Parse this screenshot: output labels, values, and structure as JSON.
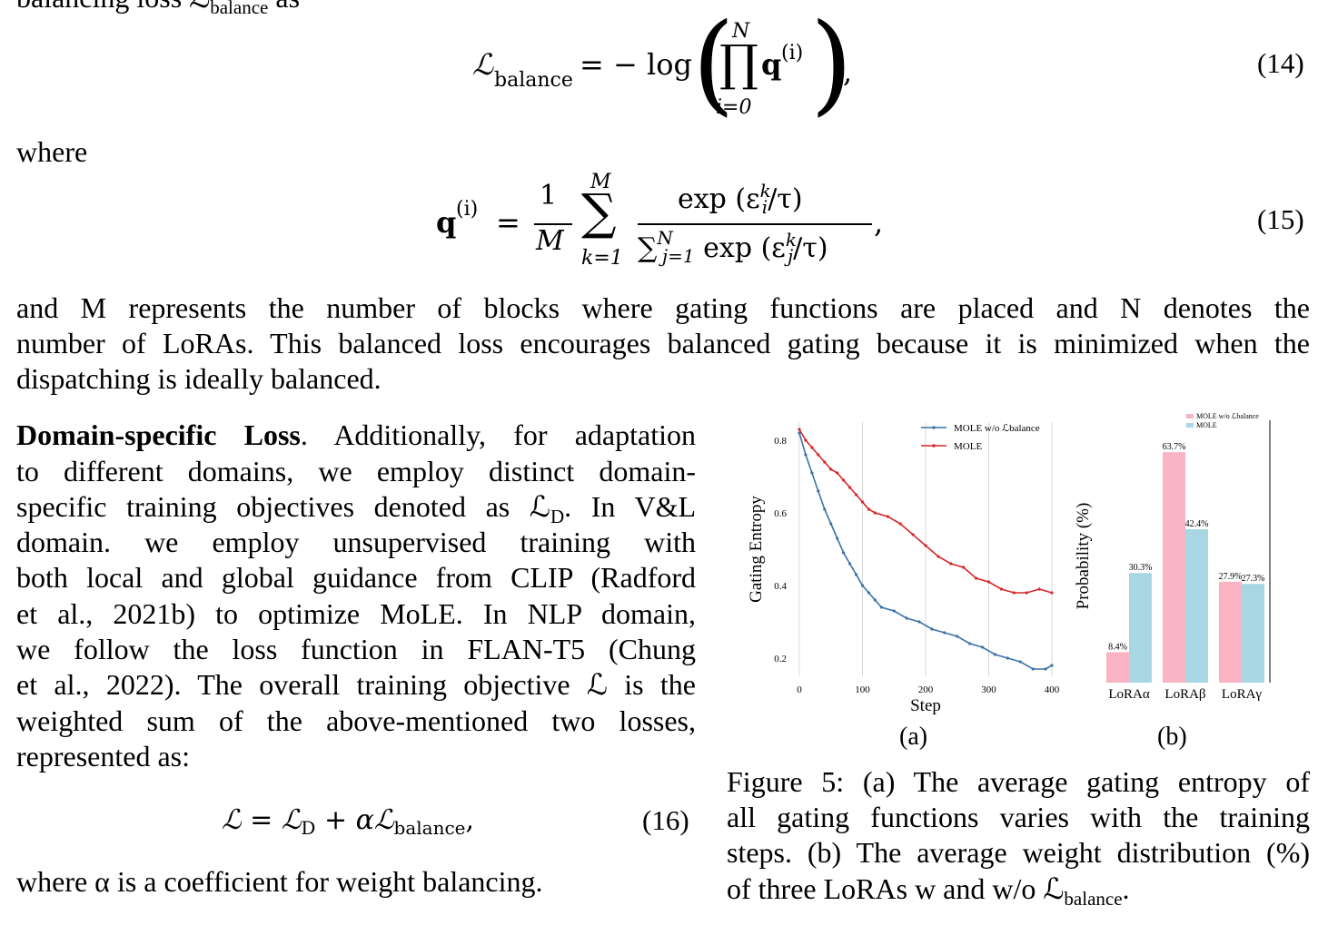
{
  "top_fragment": "balancing loss ℒ",
  "eq14": {
    "lhs": "ℒ",
    "lhs_sub": "balance",
    "rel": "= − log",
    "prod_top": "N",
    "prod_bot": "i=0",
    "q": "q",
    "q_sup": "(i)",
    "comma": ",",
    "number": "(14)"
  },
  "where1": "where",
  "eq15": {
    "lhs": "q",
    "lhs_sup": "(i)",
    "eq": "=",
    "frac_num": "1",
    "frac_den": "M",
    "sum_top": "M",
    "sum_bot": "k=1",
    "num": "exp (ε",
    "num_sup": "k",
    "num_sub": "i",
    "num_end": "/τ)",
    "den_sum": "∑",
    "den_sum_sup": "N",
    "den_sum_sub": "j=1",
    "den": "exp (ε",
    "den_sup": "k",
    "den_sub": "j",
    "den_end": "/τ)",
    "comma": ",",
    "number": "(15)"
  },
  "para1": [
    "and M represents the number of blocks where gating functions are placed and N denotes the",
    "number of LoRAs. This balanced loss encourages balanced gating because it is minimized when the",
    "dispatching is ideally balanced."
  ],
  "para2": {
    "heading": "Domain-specific Loss",
    "lines": [
      ". Additionally, for adaptation",
      "to different domains, we employ distinct domain-",
      "specific training objectives denoted as ℒ",
      "domain.  we employ unsupervised training with",
      "both local and global guidance from CLIP (Radford",
      "et al., 2021b) to optimize MoLE. In NLP domain,",
      "we follow the loss function in FLAN-T5 (Chung",
      "et al., 2022). The overall training objective ℒ is the",
      "weighted sum of the above-mentioned two losses,",
      "represented as:"
    ],
    "line3_sub": "D",
    "line3_end": ". In V&L"
  },
  "eq16": {
    "text": "ℒ = ℒ",
    "sub1": "D",
    "mid": " + αℒ",
    "sub2": "balance",
    "end": ",",
    "number": "(16)"
  },
  "where2": "where α is a coefficient for weight balancing.",
  "figure": {
    "caption_lines": [
      "Figure 5: (a) The average gating entropy of",
      "all gating functions varies with the training",
      "steps. (b) The average weight distribution (%)",
      "of three LoRAs w and w/o ℒ"
    ],
    "caption_sub": "balance",
    "caption_end": ".",
    "label_a": "(a)",
    "label_b": "(b)"
  },
  "chart_data": [
    {
      "type": "line",
      "xlabel": "Step",
      "ylabel": "Gating Entropy",
      "xticks": [
        0,
        100,
        200,
        300,
        400
      ],
      "yticks": [
        0.2,
        0.4,
        0.6,
        0.8
      ],
      "ytick_labels": [
        "0.2",
        "0.4",
        "0.6",
        "0.8"
      ],
      "xlim": [
        0,
        400
      ],
      "ylim": [
        0.15,
        0.85
      ],
      "grid": "vertical",
      "legend": "top-right",
      "series": [
        {
          "name": "MOLE w/o ℒbalance",
          "color": "#3b73a8",
          "x": [
            0,
            10,
            20,
            30,
            40,
            50,
            60,
            70,
            80,
            90,
            100,
            110,
            120,
            130,
            150,
            170,
            190,
            210,
            230,
            250,
            270,
            290,
            310,
            330,
            350,
            370,
            390,
            400
          ],
          "y": [
            0.82,
            0.76,
            0.71,
            0.66,
            0.61,
            0.57,
            0.53,
            0.49,
            0.46,
            0.43,
            0.4,
            0.38,
            0.36,
            0.34,
            0.33,
            0.31,
            0.3,
            0.28,
            0.27,
            0.26,
            0.24,
            0.23,
            0.21,
            0.2,
            0.19,
            0.17,
            0.17,
            0.18
          ]
        },
        {
          "name": "MOLE",
          "color": "#d62728",
          "x": [
            0,
            10,
            20,
            30,
            40,
            50,
            60,
            70,
            80,
            90,
            100,
            110,
            120,
            140,
            160,
            180,
            200,
            220,
            240,
            260,
            280,
            300,
            320,
            340,
            360,
            380,
            400
          ],
          "y": [
            0.83,
            0.8,
            0.78,
            0.76,
            0.74,
            0.72,
            0.71,
            0.69,
            0.67,
            0.65,
            0.63,
            0.61,
            0.6,
            0.59,
            0.57,
            0.54,
            0.51,
            0.48,
            0.46,
            0.45,
            0.42,
            0.41,
            0.39,
            0.38,
            0.38,
            0.39,
            0.38
          ]
        }
      ]
    },
    {
      "type": "bar",
      "ylabel": "Probability (%)",
      "categories": [
        "LoRAα",
        "LoRAβ",
        "LoRAγ"
      ],
      "ylim": [
        0,
        70
      ],
      "legend": "top-right",
      "series": [
        {
          "name": "MOLE w/o ℒbalance",
          "color": "#f9b3c2",
          "values": [
            8.4,
            63.7,
            27.9
          ],
          "labels": [
            "8.4%",
            "63.7%",
            "27.9%"
          ]
        },
        {
          "name": "MOLE",
          "color": "#a8d6e3",
          "values": [
            30.3,
            42.4,
            27.3
          ],
          "labels": [
            "30.3%",
            "42.4%",
            "27.3%"
          ]
        }
      ]
    }
  ]
}
